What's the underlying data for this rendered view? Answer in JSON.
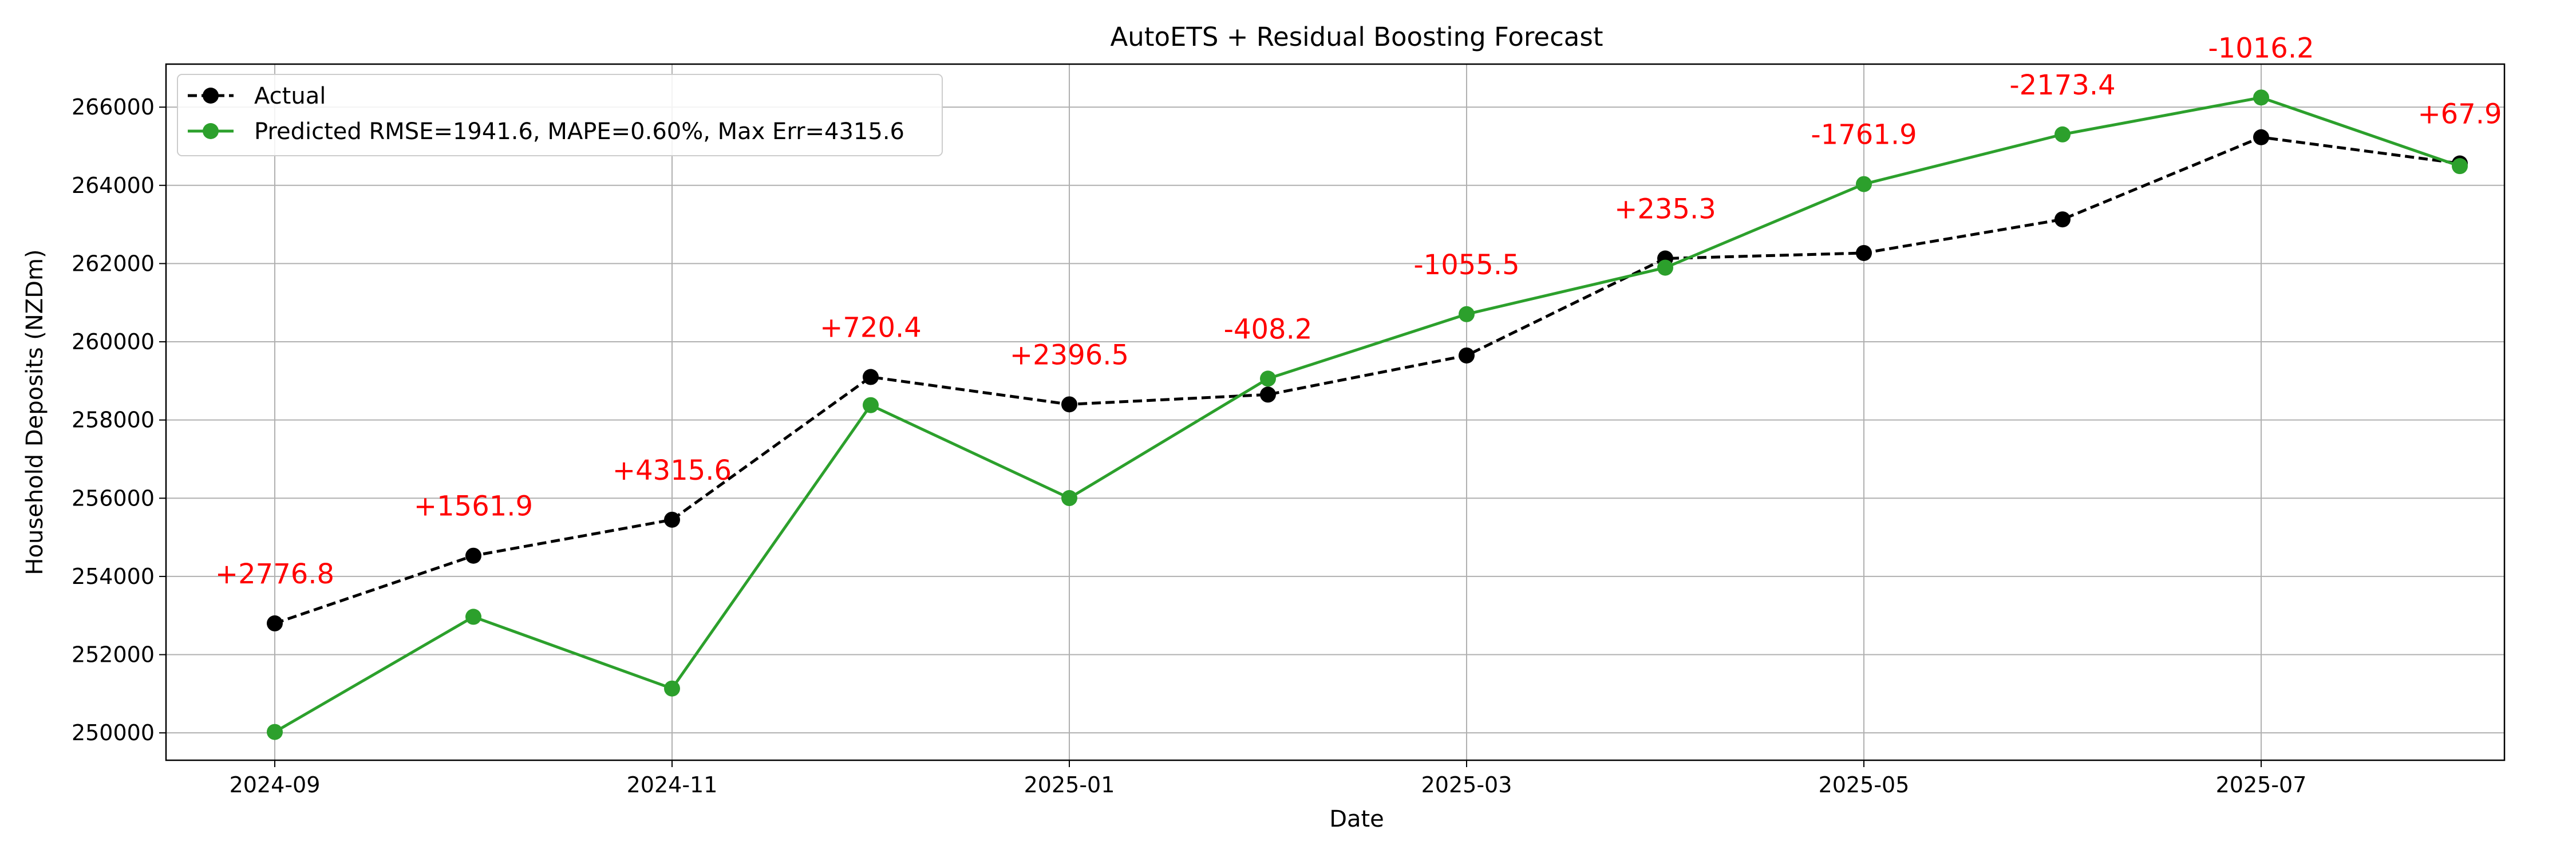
{
  "chart_data": {
    "type": "line",
    "title": "AutoETS + Residual Boosting Forecast",
    "xlabel": "Date",
    "ylabel": "Household Deposits (NZDm)",
    "x": [
      "2024-09",
      "2024-10",
      "2024-11",
      "2024-12",
      "2025-01",
      "2025-02",
      "2025-03",
      "2025-04",
      "2025-05",
      "2025-06",
      "2025-07",
      "2025-08"
    ],
    "xticks": [
      "2024-09",
      "2024-11",
      "2025-01",
      "2025-03",
      "2025-05",
      "2025-07"
    ],
    "yticks": [
      "250000",
      "252000",
      "254000",
      "256000",
      "258000",
      "260000",
      "262000",
      "264000",
      "266000"
    ],
    "ylim": [
      249300,
      267100
    ],
    "grid": true,
    "legend_position": "top-left",
    "series": [
      {
        "name": "Actual",
        "color": "#000000",
        "style": "dashed",
        "values": [
          252800,
          254530,
          255450,
          259100,
          258400,
          258650,
          259650,
          262130,
          262270,
          263130,
          265230,
          264560
        ]
      },
      {
        "name": "Predicted RMSE=1941.6, MAPE=0.60%, Max Err=4315.6",
        "color": "#2ca02c",
        "style": "solid",
        "values": [
          250023,
          252968,
          251134,
          258380,
          256004,
          259058,
          260706,
          261895,
          264032,
          265303,
          266246,
          264492
        ]
      }
    ],
    "annotations": [
      "+2776.8",
      "+1561.9",
      "+4315.6",
      "+720.4",
      "+2396.5",
      "-408.2",
      "-1055.5",
      "+235.3",
      "-1761.9",
      "-2173.4",
      "-1016.2",
      "+67.9"
    ],
    "annotation_color": "#ff0000"
  }
}
